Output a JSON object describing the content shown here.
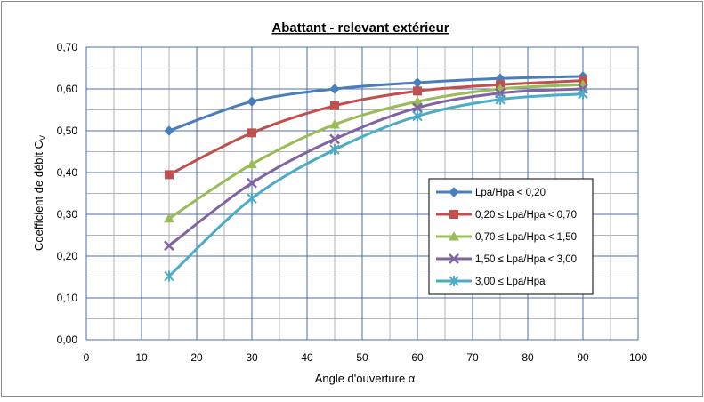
{
  "chart_data": {
    "type": "line",
    "title": "Abattant - relevant extérieur",
    "xlabel": "Angle d'ouverture α",
    "ylabel": "Coefficient  de débit C",
    "ylabel_subscript": "V",
    "xlim": [
      0,
      100
    ],
    "ylim": [
      0,
      0.7
    ],
    "x_ticks": [
      "0",
      "10",
      "20",
      "30",
      "40",
      "50",
      "60",
      "70",
      "80",
      "90",
      "100"
    ],
    "y_ticks": [
      "0,00",
      "0,10",
      "0,20",
      "0,30",
      "0,40",
      "0,50",
      "0,60",
      "0,70"
    ],
    "grid": true,
    "legend_position": "center-right",
    "x": [
      15,
      30,
      45,
      60,
      75,
      90
    ],
    "series": [
      {
        "name": "Lpa/Hpa < 0,20",
        "values": [
          0.5,
          0.57,
          0.6,
          0.615,
          0.625,
          0.63
        ],
        "color": "#4a7ebb",
        "marker": "diamond"
      },
      {
        "name": "0,20 ≤ Lpa/Hpa < 0,70",
        "values": [
          0.395,
          0.495,
          0.56,
          0.595,
          0.61,
          0.62
        ],
        "color": "#c0504d",
        "marker": "square"
      },
      {
        "name": "0,70 ≤ Lpa/Hpa < 1,50",
        "values": [
          0.29,
          0.42,
          0.515,
          0.57,
          0.6,
          0.61
        ],
        "color": "#9bbb59",
        "marker": "triangle"
      },
      {
        "name": "1,50 ≤ Lpa/Hpa < 3,00",
        "values": [
          0.225,
          0.375,
          0.48,
          0.555,
          0.59,
          0.6
        ],
        "color": "#8064a2",
        "marker": "x"
      },
      {
        "name": "3,00 ≤ Lpa/Hpa",
        "values": [
          0.152,
          0.338,
          0.455,
          0.535,
          0.575,
          0.588
        ],
        "color": "#4bacc6",
        "marker": "star"
      }
    ]
  }
}
